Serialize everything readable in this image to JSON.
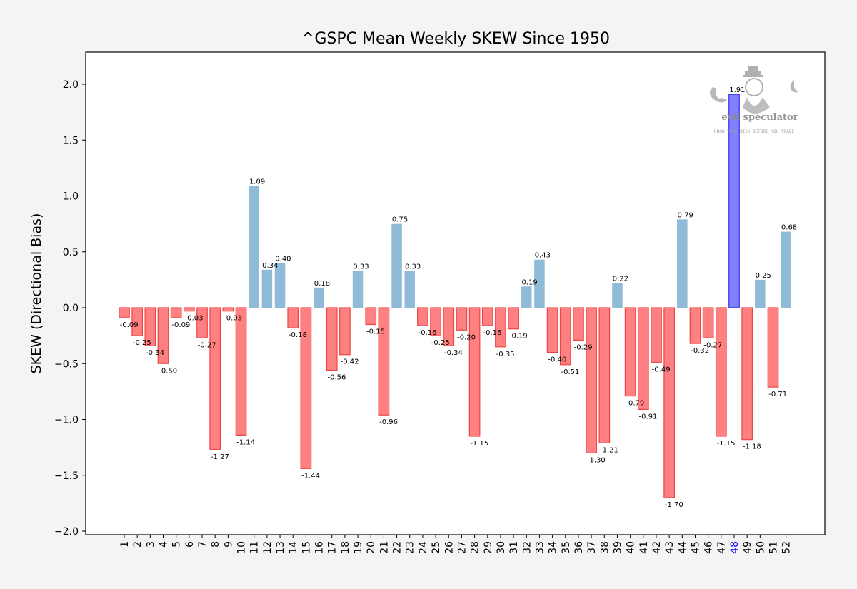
{
  "chart_data": {
    "type": "bar",
    "title": "^GSPC Mean Weekly SKEW Since 1950",
    "xlabel": "",
    "ylabel": "SKEW (Directional Bias)",
    "ylim": [
      -2.05,
      2.28
    ],
    "yticks": [
      "2.0",
      "1.5",
      "1.0",
      "0.5",
      "0.0",
      "−0.5",
      "−1.0",
      "−1.5",
      "−2.0"
    ],
    "ytick_values": [
      2.0,
      1.5,
      1.0,
      0.5,
      0.0,
      -0.5,
      -1.0,
      -1.5,
      -2.0
    ],
    "categories": [
      "1",
      "2",
      "3",
      "4",
      "5",
      "6",
      "7",
      "8",
      "9",
      "10",
      "11",
      "12",
      "13",
      "14",
      "15",
      "16",
      "17",
      "18",
      "19",
      "20",
      "21",
      "22",
      "23",
      "24",
      "25",
      "26",
      "27",
      "28",
      "29",
      "30",
      "31",
      "32",
      "33",
      "34",
      "35",
      "36",
      "37",
      "38",
      "39",
      "40",
      "41",
      "42",
      "43",
      "44",
      "45",
      "46",
      "47",
      "48",
      "49",
      "50",
      "51",
      "52"
    ],
    "values": [
      -0.09,
      -0.25,
      -0.34,
      -0.5,
      -0.09,
      -0.03,
      -0.27,
      -1.27,
      -0.03,
      -1.14,
      1.09,
      0.34,
      0.4,
      -0.18,
      -1.44,
      0.18,
      -0.56,
      -0.42,
      0.33,
      -0.15,
      -0.96,
      0.75,
      0.33,
      -0.16,
      -0.25,
      -0.34,
      -0.2,
      -1.15,
      -0.16,
      -0.35,
      -0.19,
      0.19,
      0.43,
      -0.4,
      -0.51,
      -0.29,
      -1.3,
      -1.21,
      0.22,
      -0.79,
      -0.91,
      -0.49,
      -1.7,
      0.79,
      -0.32,
      -0.27,
      -1.15,
      1.91,
      -1.18,
      0.25,
      -0.71,
      0.68
    ],
    "value_labels": [
      "-0.09",
      "-0.25",
      "-0.34",
      "-0.50",
      "-0.09",
      "-0.03",
      "-0.27",
      "-1.27",
      "-0.03",
      "-1.14",
      "1.09",
      "0.34",
      "0.40",
      "-0.18",
      "-1.44",
      "0.18",
      "-0.56",
      "-0.42",
      "0.33",
      "-0.15",
      "-0.96",
      "0.75",
      "0.33",
      "-0.16",
      "-0.25",
      "-0.34",
      "-0.20",
      "-1.15",
      "-0.16",
      "-0.35",
      "-0.19",
      "0.19",
      "0.43",
      "-0.40",
      "-0.51",
      "-0.29",
      "-1.30",
      "-1.21",
      "0.22",
      "-0.79",
      "-0.91",
      "-0.49",
      "-1.70",
      "0.79",
      "-0.32",
      "-0.27",
      "-1.15",
      "1.91",
      "-1.18",
      "0.25",
      "-0.71",
      "0.68"
    ],
    "highlight_category": "48",
    "grid": false,
    "colors": {
      "positive": "#8fbbd9",
      "negative": "#ff8080",
      "negative_edge": "#ee4444",
      "highlight": "#8080ff",
      "highlight_edge": "#3333ee",
      "highlight_tick": "#0000ff",
      "background": "#f4f4f4",
      "plot_background": "#ffffff"
    }
  },
  "watermark": {
    "brand": "evil speculator",
    "tagline": "KNOW YOUR RISK BEFORE YOU TRADE"
  }
}
